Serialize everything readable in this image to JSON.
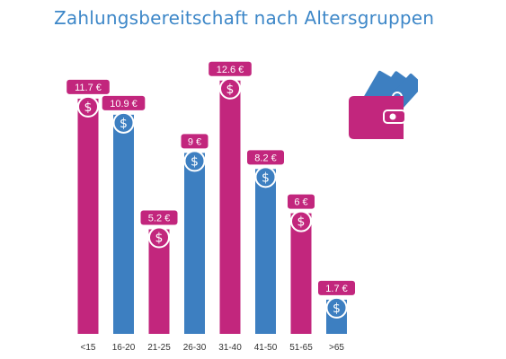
{
  "title": "Zahlungsbereitschaft nach Altersgruppen",
  "colors": {
    "magenta": "#c2267d",
    "blue": "#3d7fc1",
    "title": "#3d87c8",
    "text": "#333333"
  },
  "icons": {
    "coin": "dollar-coin-icon",
    "wallet": "wallet-with-money-icon"
  },
  "chart_data": {
    "type": "bar",
    "title": "Zahlungsbereitschaft nach Altersgruppen",
    "xlabel": "",
    "ylabel": "",
    "ylim": [
      0,
      14.5
    ],
    "grid": false,
    "legend": "none",
    "categories": [
      "<15",
      "16-20",
      "21-25",
      "26-30",
      "31-40",
      "41-50",
      "51-65",
      ">65"
    ],
    "values": [
      11.7,
      10.9,
      5.2,
      9,
      12.6,
      8.2,
      6,
      1.7
    ],
    "value_labels": [
      "11.7 €",
      "10.9 €",
      "5.2 €",
      "9 €",
      "12.6 €",
      "8.2 €",
      "6 €",
      "1.7 €"
    ],
    "bar_colors": [
      "magenta",
      "blue",
      "magenta",
      "blue",
      "magenta",
      "blue",
      "magenta",
      "blue"
    ]
  }
}
